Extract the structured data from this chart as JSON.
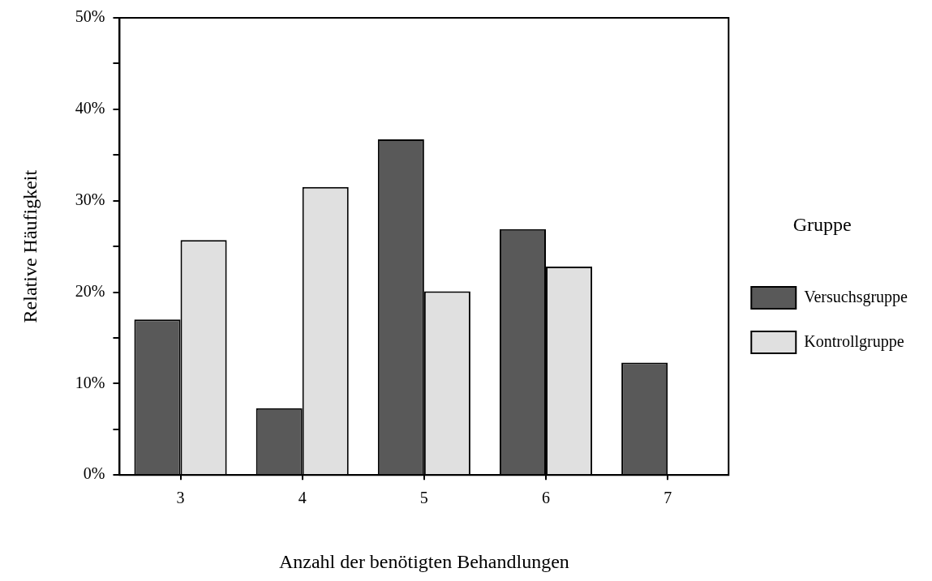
{
  "chart_data": {
    "type": "bar",
    "xlabel": "Anzahl der benötigten Behandlungen",
    "ylabel": "Relative Häufigkeit",
    "legend_title": "Gruppe",
    "categories": [
      "3",
      "4",
      "5",
      "6",
      "7"
    ],
    "series": [
      {
        "name": "Versuchsgruppe",
        "color": "#595959",
        "values": [
          17.0,
          7.3,
          36.7,
          26.9,
          12.3
        ]
      },
      {
        "name": "Kontrollgruppe",
        "color": "#e0e0e0",
        "values": [
          25.7,
          31.5,
          20.1,
          22.8,
          0
        ]
      }
    ],
    "ylim": [
      0,
      50
    ],
    "yticks": [
      {
        "value": 0,
        "label": "0%"
      },
      {
        "value": 5,
        "label": null
      },
      {
        "value": 10,
        "label": "10%"
      },
      {
        "value": 15,
        "label": null
      },
      {
        "value": 20,
        "label": "20%"
      },
      {
        "value": 25,
        "label": null
      },
      {
        "value": 30,
        "label": "30%"
      },
      {
        "value": 35,
        "label": null
      },
      {
        "value": 40,
        "label": "40%"
      },
      {
        "value": 45,
        "label": null
      },
      {
        "value": 50,
        "label": "50%"
      }
    ],
    "grid": false,
    "legend": "right"
  }
}
